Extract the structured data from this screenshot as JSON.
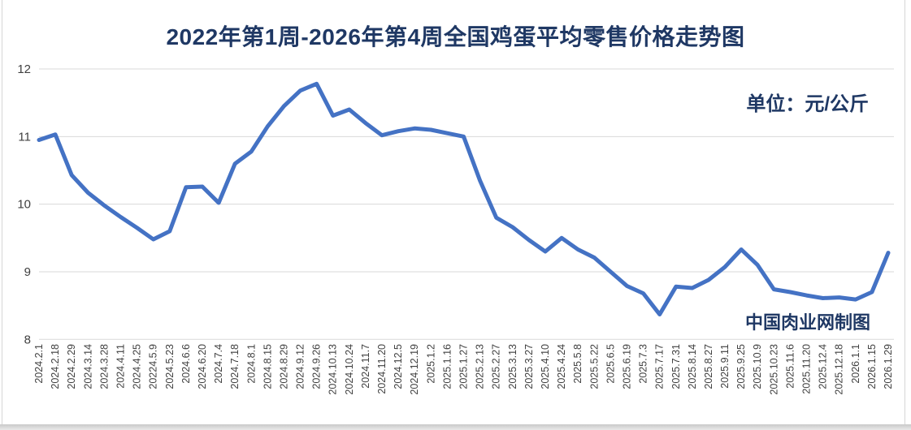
{
  "title": "2022年第1周-2026年第4周全国鸡蛋平均零售价格走势图",
  "unit_label": "单位：元/公斤",
  "watermark": "中国肉业网制图",
  "colors": {
    "line": "#4472C4",
    "heading_text": "#1F3864",
    "axis_text": "#404040",
    "gridline": "#D9D9D9",
    "background": "#FFFFFF"
  },
  "chart_data": {
    "type": "line",
    "title": "2022年第1周-2026年第4周全国鸡蛋平均零售价格走势图",
    "unit": "元/公斤",
    "xlabel": "",
    "ylabel": "",
    "ylim": [
      8,
      12
    ],
    "yticks": [
      8,
      9,
      10,
      11,
      12
    ],
    "grid": true,
    "legend_position": "none",
    "categories": [
      "2024.2.1",
      "2024.2.18",
      "2024.2.29",
      "2024.3.14",
      "2024.3.28",
      "2024.4.11",
      "2024.4.25",
      "20224.5.9",
      "2024.5.23",
      "2024.6.6",
      "2024.6.20",
      "2024.7.4",
      "2024.7.18",
      "2024.8.1",
      "2024.8.15",
      "2024.8.29",
      "2024.9.12",
      "2024.9.26",
      "2024.10.13",
      "2024.10.24",
      "2024.11.7",
      "2024.11.20",
      "2024.12.5",
      "2024.12.19",
      "2025.1.2",
      "2025.1.16",
      "2025.1.27",
      "2025.2.13",
      "2025.2.27",
      "2025.3.13",
      "2025.3.27",
      "2025.4.10",
      "2025.4.24",
      "2025.5.8",
      "2025.5.22",
      "2025.6.5",
      "2025.6.19",
      "2025.7.3",
      "2025.7.17",
      "2025.7.31",
      "2025.8.14",
      "2025.8.27",
      "2025.9.11",
      "2025.9.25",
      "2025.10.9",
      "2025.10.23",
      "2025.11.6",
      "2025.11.20",
      "2025.12.4",
      "2025.12.18",
      "2026.1.1",
      "2026.1.15",
      "2026.1.29"
    ],
    "values": [
      10.95,
      11.03,
      10.43,
      10.17,
      9.98,
      9.81,
      9.65,
      9.48,
      9.6,
      10.25,
      10.26,
      10.02,
      10.6,
      10.78,
      11.15,
      11.45,
      11.68,
      11.78,
      11.31,
      11.4,
      11.2,
      11.02,
      11.08,
      11.12,
      11.1,
      11.05,
      11.0,
      10.35,
      9.8,
      9.66,
      9.47,
      9.3,
      9.5,
      9.33,
      9.21,
      9.0,
      8.79,
      8.68,
      8.37,
      8.78,
      8.76,
      8.88,
      9.07,
      9.33,
      9.1,
      8.74,
      8.7,
      8.65,
      8.61,
      8.62,
      8.59,
      8.7,
      9.28
    ]
  }
}
